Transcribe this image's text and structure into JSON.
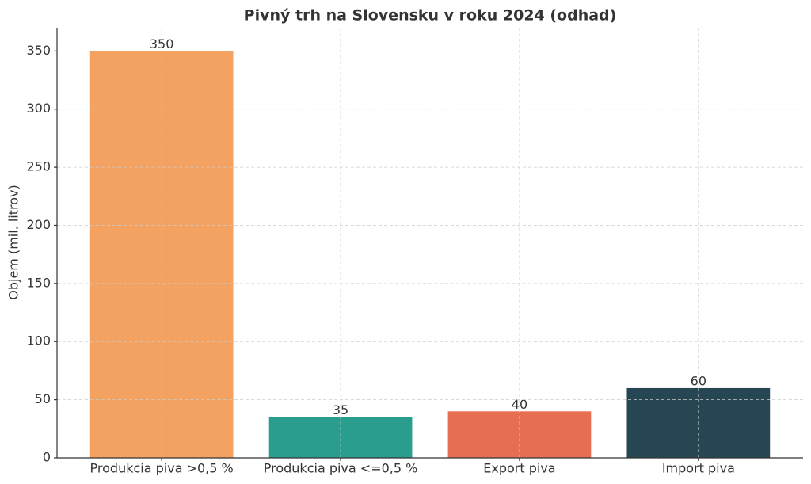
{
  "chart_data": {
    "type": "bar",
    "title": "Pivný trh na Slovensku v roku 2024 (odhad)",
    "y_label": "Objem (mil. litrov)",
    "categories": [
      "Produkcia piva >0,5 %",
      "Produkcia piva <=0,5 %",
      "Export piva",
      "Import piva"
    ],
    "values": [
      350,
      35,
      40,
      60
    ],
    "colors": [
      "#f4a261",
      "#2a9d8f",
      "#e76f51",
      "#264653"
    ],
    "ylim": [
      0,
      370
    ],
    "yticks": [
      0,
      50,
      100,
      150,
      200,
      250,
      300,
      350
    ],
    "grid": true
  }
}
